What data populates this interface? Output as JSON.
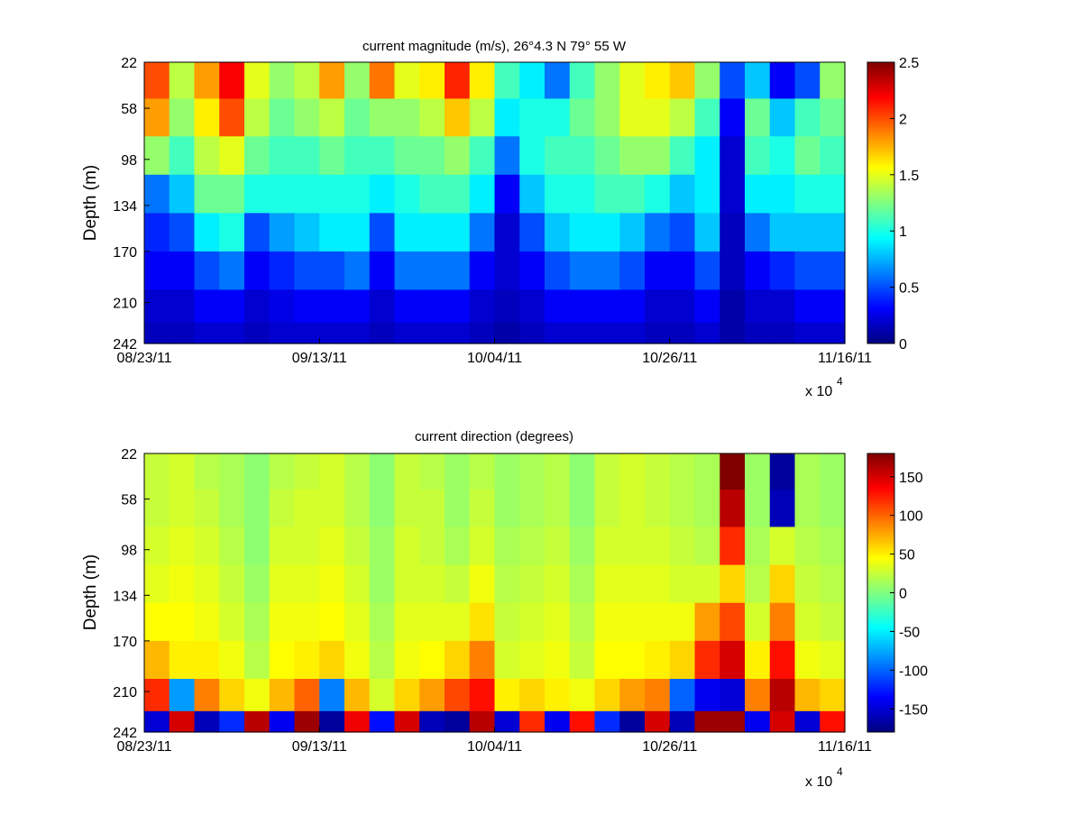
{
  "chart_data": [
    {
      "type": "heatmap",
      "title": "current magnitude (m/s), 26°4.3 N 79° 55 W",
      "ylabel": "Depth (m)",
      "xlabel": "",
      "x_multiplier": "x 10",
      "x_multiplier_exp": "4",
      "x_tick_labels": [
        "08/23/11",
        "09/13/11",
        "10/04/11",
        "10/26/11",
        "11/16/11"
      ],
      "y_tick_labels": [
        "22",
        "58",
        "98",
        "134",
        "170",
        "210",
        "242"
      ],
      "y_ticks": [
        22,
        58,
        98,
        134,
        170,
        210,
        242
      ],
      "ylim": [
        22,
        242
      ],
      "y_reversed": true,
      "depth_bins": [
        36,
        65,
        95,
        125,
        155,
        185,
        215,
        236
      ],
      "colormap": "jet",
      "clim": [
        0,
        2.5
      ],
      "colorbar_ticks": [
        0,
        0.5,
        1,
        1.5,
        2,
        2.5
      ],
      "colorbar_tick_labels": [
        "0",
        "0.5",
        "1",
        "1.5",
        "2",
        "2.5"
      ],
      "values_by_time": [
        [
          2.0,
          1.8,
          1.3,
          0.6,
          0.4,
          0.3,
          0.2,
          0.15
        ],
        [
          1.4,
          1.3,
          1.1,
          0.8,
          0.5,
          0.3,
          0.2,
          0.15
        ],
        [
          1.8,
          1.6,
          1.4,
          1.2,
          0.9,
          0.5,
          0.3,
          0.2
        ],
        [
          2.2,
          2.0,
          1.5,
          1.2,
          1.0,
          0.6,
          0.3,
          0.2
        ],
        [
          1.5,
          1.4,
          1.2,
          1.0,
          0.5,
          0.3,
          0.2,
          0.15
        ],
        [
          1.3,
          1.2,
          1.1,
          1.0,
          0.7,
          0.4,
          0.25,
          0.2
        ],
        [
          1.4,
          1.3,
          1.1,
          1.0,
          0.8,
          0.5,
          0.3,
          0.2
        ],
        [
          1.8,
          1.4,
          1.2,
          1.0,
          0.9,
          0.5,
          0.3,
          0.2
        ],
        [
          1.3,
          1.2,
          1.1,
          1.0,
          0.9,
          0.6,
          0.3,
          0.2
        ],
        [
          1.9,
          1.3,
          1.1,
          0.9,
          0.5,
          0.3,
          0.2,
          0.15
        ],
        [
          1.5,
          1.3,
          1.2,
          1.0,
          0.9,
          0.6,
          0.3,
          0.2
        ],
        [
          1.6,
          1.4,
          1.2,
          1.1,
          0.9,
          0.6,
          0.3,
          0.2
        ],
        [
          2.1,
          1.7,
          1.3,
          1.1,
          0.9,
          0.6,
          0.3,
          0.2
        ],
        [
          1.6,
          1.4,
          1.1,
          0.9,
          0.6,
          0.3,
          0.2,
          0.15
        ],
        [
          1.1,
          0.9,
          0.6,
          0.3,
          0.2,
          0.2,
          0.15,
          0.1
        ],
        [
          0.9,
          1.0,
          1.0,
          0.8,
          0.5,
          0.3,
          0.2,
          0.15
        ],
        [
          0.6,
          1.0,
          1.1,
          1.0,
          0.8,
          0.5,
          0.3,
          0.2
        ],
        [
          1.1,
          1.2,
          1.1,
          1.0,
          0.9,
          0.6,
          0.3,
          0.2
        ],
        [
          1.3,
          1.3,
          1.2,
          1.1,
          0.9,
          0.6,
          0.3,
          0.2
        ],
        [
          1.5,
          1.5,
          1.3,
          1.1,
          0.8,
          0.5,
          0.3,
          0.2
        ],
        [
          1.6,
          1.5,
          1.3,
          1.0,
          0.6,
          0.3,
          0.2,
          0.15
        ],
        [
          1.7,
          1.4,
          1.1,
          0.8,
          0.5,
          0.3,
          0.2,
          0.15
        ],
        [
          1.3,
          1.1,
          0.9,
          0.9,
          0.8,
          0.5,
          0.3,
          0.2
        ],
        [
          0.5,
          0.3,
          0.2,
          0.2,
          0.15,
          0.15,
          0.1,
          0.1
        ],
        [
          0.8,
          1.2,
          1.1,
          0.9,
          0.6,
          0.3,
          0.2,
          0.15
        ],
        [
          0.3,
          0.8,
          1.0,
          0.9,
          0.8,
          0.4,
          0.2,
          0.15
        ],
        [
          0.5,
          1.1,
          1.2,
          1.0,
          0.8,
          0.5,
          0.3,
          0.2
        ],
        [
          1.3,
          1.2,
          1.1,
          1.0,
          0.8,
          0.5,
          0.3,
          0.2
        ]
      ]
    },
    {
      "type": "heatmap",
      "title": "current direction (degrees)",
      "ylabel": "Depth (m)",
      "xlabel": "",
      "x_multiplier": "x 10",
      "x_multiplier_exp": "4",
      "x_tick_labels": [
        "08/23/11",
        "09/13/11",
        "10/04/11",
        "10/26/11",
        "11/16/11"
      ],
      "y_tick_labels": [
        "22",
        "58",
        "98",
        "134",
        "170",
        "210",
        "242"
      ],
      "y_ticks": [
        22,
        58,
        98,
        134,
        170,
        210,
        242
      ],
      "ylim": [
        22,
        242
      ],
      "y_reversed": true,
      "depth_bins": [
        36,
        65,
        95,
        125,
        155,
        185,
        215,
        236
      ],
      "colormap": "jet",
      "clim": [
        -180,
        180
      ],
      "colorbar_ticks": [
        -150,
        -100,
        -50,
        0,
        50,
        100,
        150
      ],
      "colorbar_tick_labels": [
        "-150",
        "-100",
        "-50",
        "0",
        "50",
        "100",
        "150"
      ],
      "values_by_time": [
        [
          25,
          25,
          30,
          35,
          45,
          70,
          120,
          -150
        ],
        [
          30,
          30,
          35,
          40,
          45,
          50,
          -80,
          150
        ],
        [
          20,
          25,
          30,
          35,
          40,
          50,
          90,
          -160
        ],
        [
          15,
          15,
          20,
          25,
          30,
          40,
          60,
          -120
        ],
        [
          5,
          5,
          5,
          10,
          15,
          20,
          40,
          160
        ],
        [
          20,
          25,
          30,
          35,
          40,
          45,
          70,
          -140
        ],
        [
          25,
          30,
          30,
          35,
          40,
          50,
          100,
          170
        ],
        [
          30,
          30,
          35,
          40,
          45,
          60,
          -90,
          -170
        ],
        [
          20,
          20,
          25,
          30,
          35,
          40,
          70,
          140
        ],
        [
          5,
          5,
          10,
          10,
          15,
          20,
          30,
          -130
        ],
        [
          25,
          25,
          30,
          30,
          35,
          40,
          60,
          150
        ],
        [
          20,
          25,
          25,
          30,
          35,
          45,
          80,
          -160
        ],
        [
          10,
          10,
          15,
          25,
          35,
          60,
          110,
          -170
        ],
        [
          20,
          25,
          30,
          40,
          55,
          90,
          130,
          160
        ],
        [
          10,
          10,
          15,
          20,
          25,
          30,
          50,
          -150
        ],
        [
          15,
          15,
          20,
          25,
          30,
          35,
          60,
          120
        ],
        [
          20,
          20,
          25,
          30,
          35,
          40,
          50,
          -140
        ],
        [
          5,
          5,
          10,
          15,
          20,
          25,
          40,
          130
        ],
        [
          25,
          25,
          30,
          35,
          40,
          45,
          60,
          -120
        ],
        [
          30,
          30,
          30,
          35,
          40,
          45,
          80,
          -170
        ],
        [
          25,
          25,
          30,
          35,
          40,
          50,
          90,
          150
        ],
        [
          20,
          20,
          25,
          30,
          40,
          60,
          -100,
          -160
        ],
        [
          15,
          15,
          20,
          30,
          80,
          120,
          -140,
          170
        ],
        [
          180,
          160,
          120,
          60,
          110,
          150,
          -150,
          170
        ],
        [
          10,
          10,
          15,
          20,
          30,
          50,
          90,
          -140
        ],
        [
          -170,
          -160,
          30,
          60,
          90,
          130,
          160,
          150
        ],
        [
          15,
          15,
          20,
          25,
          30,
          40,
          70,
          -150
        ],
        [
          10,
          10,
          15,
          20,
          25,
          35,
          60,
          130
        ]
      ]
    }
  ]
}
